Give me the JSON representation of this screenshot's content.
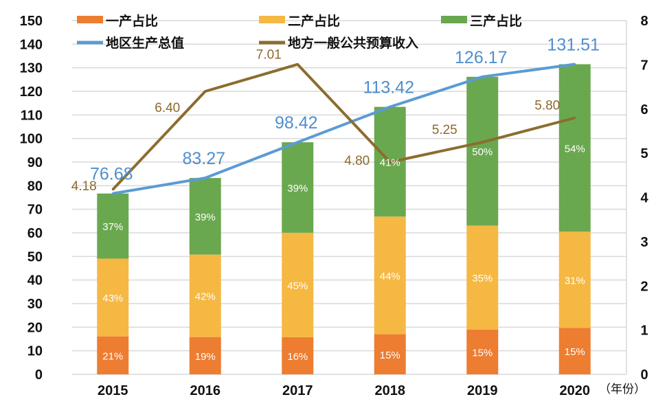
{
  "chart_data": {
    "type": "bar",
    "subtype": "stacked bar + line (dual axis)",
    "categories": [
      "2015",
      "2016",
      "2017",
      "2018",
      "2019",
      "2020"
    ],
    "x_unit_label": "（年份）",
    "left_axis": {
      "ylim": [
        0,
        150
      ],
      "ticks": [
        0,
        10,
        20,
        30,
        40,
        50,
        60,
        70,
        80,
        90,
        100,
        110,
        120,
        130,
        140,
        150
      ]
    },
    "right_axis": {
      "ylim": [
        0,
        8
      ],
      "ticks": [
        0,
        1,
        2,
        3,
        4,
        5,
        6,
        7,
        8
      ]
    },
    "grid": true,
    "legend_placement": "top",
    "stacked_series": [
      {
        "name": "一产占比",
        "color": "#ed7d31",
        "percent": [
          21,
          19,
          16,
          15,
          15,
          15
        ],
        "labels": [
          "21%",
          "19%",
          "16%",
          "15%",
          "15%",
          "15%"
        ]
      },
      {
        "name": "二产占比",
        "color": "#f5b843",
        "percent": [
          43,
          42,
          45,
          44,
          35,
          31
        ],
        "labels": [
          "43%",
          "42%",
          "45%",
          "44%",
          "35%",
          "31%"
        ]
      },
      {
        "name": "三产占比",
        "color": "#6aa84f",
        "percent": [
          37,
          39,
          39,
          41,
          50,
          54
        ],
        "labels": [
          "37%",
          "39%",
          "39%",
          "41%",
          "50%",
          "54%"
        ]
      }
    ],
    "line_series": [
      {
        "name": "地区生产总值",
        "axis": "left",
        "color": "#5b9bd5",
        "values": [
          76.68,
          83.27,
          98.42,
          113.42,
          126.17,
          131.51
        ],
        "labels": [
          "76.68",
          "83.27",
          "98.42",
          "113.42",
          "126.17",
          "131.51"
        ]
      },
      {
        "name": "地方一般公共预算收入",
        "axis": "right",
        "color": "#8b6d2f",
        "values": [
          4.18,
          6.4,
          7.01,
          4.8,
          5.25,
          5.8
        ],
        "labels": [
          "4.18",
          "6.40",
          "7.01",
          "4.80",
          "5.25",
          "5.80"
        ]
      }
    ]
  }
}
